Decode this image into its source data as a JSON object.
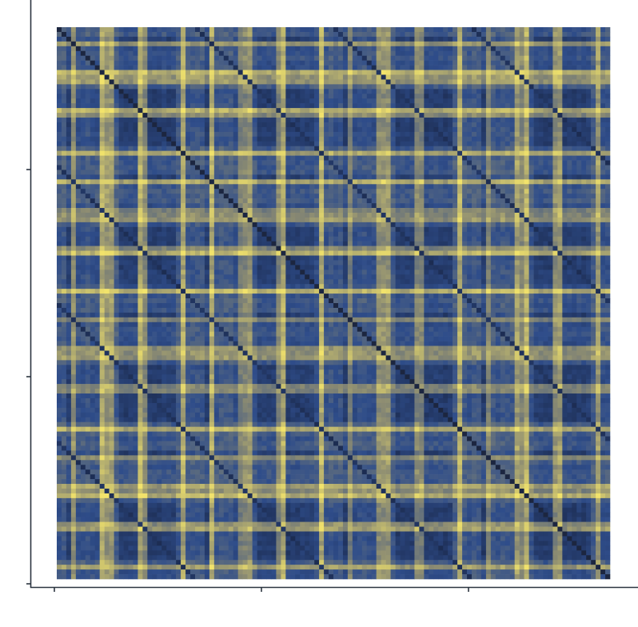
{
  "chart_data": {
    "type": "heatmap",
    "title": "",
    "xlabel": "",
    "ylabel": "",
    "n_rows": 116,
    "n_cols": 116,
    "x_tick_labels": [
      "",
      "",
      ""
    ],
    "y_tick_labels": [
      "",
      "",
      ""
    ],
    "values_description_note": "",
    "colorscale": {
      "low": "#1b2a4e",
      "mid_low": "#2f4d8a",
      "mid": "#8a8a72",
      "high": "#f2e36b"
    },
    "diagonal_color": "#1c2640",
    "value_range": [
      0,
      1
    ],
    "legend": "none",
    "grid": false,
    "pattern": {
      "block_size": 29,
      "bright_positions_in_block": [
        3,
        9,
        10,
        11,
        17,
        18,
        26
      ],
      "dark_positions_in_block": [
        2,
        13,
        14,
        15,
        16,
        19,
        20,
        21,
        22,
        23,
        24
      ]
    }
  }
}
